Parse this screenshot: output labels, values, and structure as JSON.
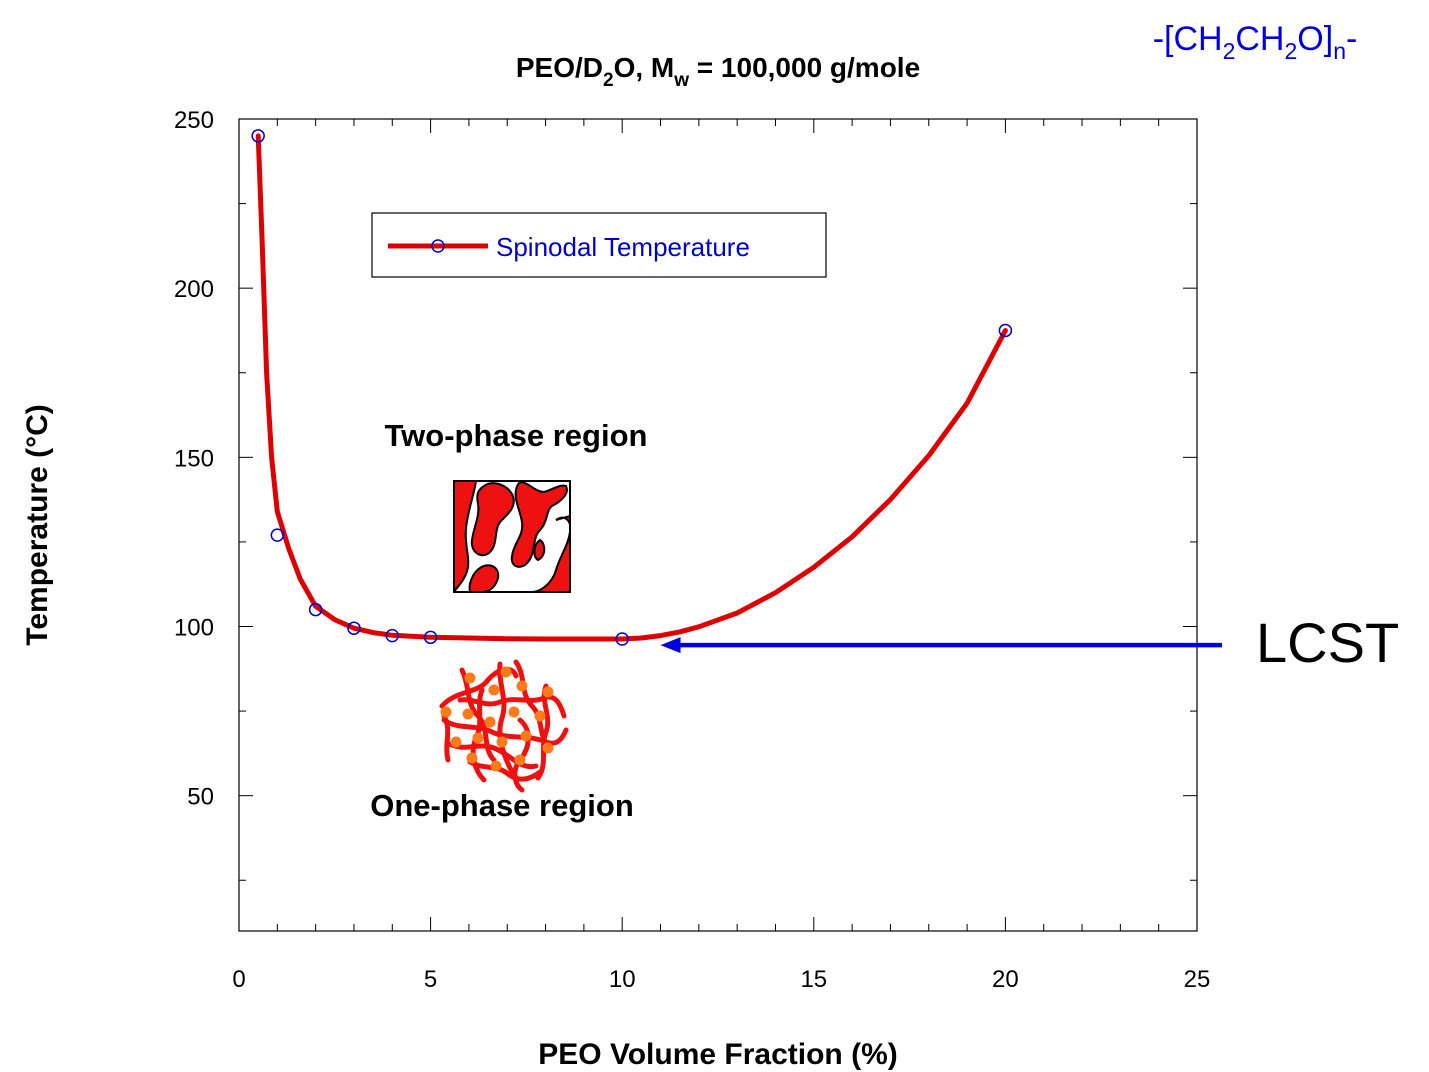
{
  "chart_data": {
    "type": "line",
    "title": {
      "main": "PEO/D",
      "sub1": "2",
      "mid": "O, M",
      "sub2": "w",
      "end": " = 100,000 g/mole"
    },
    "formula": {
      "prefix": "-[CH",
      "sub1": "2",
      "mid1": "CH",
      "sub2": "2",
      "mid2": "O]",
      "sub3": "n",
      "suffix": "-"
    },
    "xlabel": "PEO Volume Fraction (%)",
    "ylabel": "Temperature (°C)",
    "xlim": [
      0,
      25
    ],
    "ylim": [
      10,
      250
    ],
    "xticks": [
      "0",
      "5",
      "10",
      "15",
      "20",
      "25"
    ],
    "yticks": [
      "50",
      "100",
      "150",
      "200",
      "250"
    ],
    "grid": false,
    "legend": {
      "placement": "top-left",
      "entries": [
        "Spinodal Temperature"
      ]
    },
    "series": [
      {
        "name": "Spinodal Temperature",
        "color": "#dd0000",
        "marker_color": "#0000cc",
        "points": [
          [
            0.5,
            245
          ],
          [
            1,
            127
          ],
          [
            2,
            105
          ],
          [
            3,
            99.5
          ],
          [
            4,
            97.3
          ],
          [
            5,
            96.8
          ],
          [
            10,
            96.3
          ],
          [
            20,
            187.5
          ]
        ],
        "curve": [
          [
            0.5,
            245
          ],
          [
            0.6,
            215
          ],
          [
            0.72,
            175
          ],
          [
            0.85,
            150
          ],
          [
            1.0,
            134
          ],
          [
            1.3,
            123
          ],
          [
            1.6,
            114
          ],
          [
            2.0,
            106
          ],
          [
            2.5,
            102
          ],
          [
            3.0,
            99.5
          ],
          [
            3.5,
            98.2
          ],
          [
            4.0,
            97.4
          ],
          [
            5.0,
            96.8
          ],
          [
            6.0,
            96.6
          ],
          [
            7.0,
            96.4
          ],
          [
            8.0,
            96.3
          ],
          [
            9.0,
            96.3
          ],
          [
            10.0,
            96.3
          ],
          [
            10.5,
            96.6
          ],
          [
            11.0,
            97.3
          ],
          [
            11.5,
            98.4
          ],
          [
            12.0,
            99.9
          ],
          [
            13.0,
            104
          ],
          [
            14.0,
            110
          ],
          [
            15.0,
            117.5
          ],
          [
            16.0,
            126.5
          ],
          [
            17.0,
            137.5
          ],
          [
            18.0,
            150.5
          ],
          [
            19.0,
            166
          ],
          [
            20.0,
            187.5
          ]
        ]
      }
    ],
    "annotations": {
      "two_phase": "Two-phase region",
      "one_phase": "One-phase region",
      "lcst": "LCST",
      "lcst_arrow": {
        "from": [
          25.7,
          94.5
        ],
        "to": [
          11,
          94.5
        ],
        "color": "#0000dd"
      }
    },
    "colors": {
      "curve": "#dd0000",
      "marker": "#0000cc",
      "arrow": "#0000dd",
      "formula": "#0000dd",
      "legend_text": "#0000cc"
    }
  }
}
